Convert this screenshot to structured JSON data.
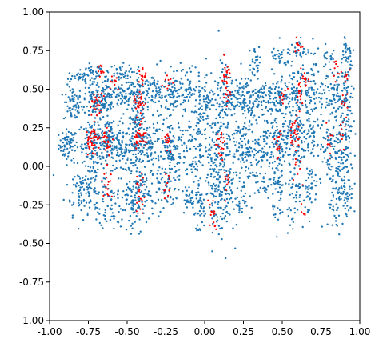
{
  "chart_data": {
    "type": "scatter",
    "title": "",
    "xlabel": "",
    "ylabel": "",
    "xlim": [
      -1.0,
      1.0
    ],
    "ylim": [
      -1.0,
      1.0
    ],
    "grid": false,
    "legend": "none",
    "x_ticks": [
      "-1.00",
      "-0.75",
      "-0.50",
      "-0.25",
      "0.00",
      "0.25",
      "0.50",
      "0.75",
      "1.00"
    ],
    "y_ticks": [
      "1.00",
      "0.75",
      "0.50",
      "0.25",
      "0.00",
      "-0.25",
      "-0.50",
      "-0.75",
      "-1.00"
    ],
    "series": [
      {
        "color": "#1f77b4",
        "clusters": [
          {
            "x": -0.88,
            "y": 0.14,
            "sx": 0.03,
            "sy": 0.05,
            "n": 70
          },
          {
            "x": -0.85,
            "y": 0.4,
            "sx": 0.03,
            "sy": 0.06,
            "n": 60
          },
          {
            "x": -0.8,
            "y": -0.15,
            "sx": 0.05,
            "sy": 0.08,
            "n": 60
          },
          {
            "x": -0.8,
            "y": 0.58,
            "sx": 0.04,
            "sy": 0.02,
            "n": 30
          },
          {
            "x": -0.72,
            "y": 0.15,
            "sx": 0.05,
            "sy": 0.07,
            "n": 110
          },
          {
            "x": -0.7,
            "y": 0.42,
            "sx": 0.05,
            "sy": 0.06,
            "n": 90
          },
          {
            "x": -0.7,
            "y": -0.1,
            "sx": 0.05,
            "sy": 0.12,
            "n": 80
          },
          {
            "x": -0.7,
            "y": 0.6,
            "sx": 0.05,
            "sy": 0.03,
            "n": 40
          },
          {
            "x": -0.62,
            "y": 0.15,
            "sx": 0.04,
            "sy": 0.08,
            "n": 90
          },
          {
            "x": -0.62,
            "y": 0.45,
            "sx": 0.04,
            "sy": 0.06,
            "n": 70
          },
          {
            "x": -0.6,
            "y": -0.25,
            "sx": 0.04,
            "sy": 0.08,
            "n": 50
          },
          {
            "x": -0.55,
            "y": 0.6,
            "sx": 0.04,
            "sy": 0.03,
            "n": 40
          },
          {
            "x": -0.52,
            "y": 0.12,
            "sx": 0.04,
            "sy": 0.09,
            "n": 90
          },
          {
            "x": -0.5,
            "y": 0.45,
            "sx": 0.04,
            "sy": 0.05,
            "n": 60
          },
          {
            "x": -0.48,
            "y": -0.2,
            "sx": 0.04,
            "sy": 0.1,
            "n": 60
          },
          {
            "x": -0.42,
            "y": 0.15,
            "sx": 0.03,
            "sy": 0.1,
            "n": 90
          },
          {
            "x": -0.42,
            "y": 0.45,
            "sx": 0.03,
            "sy": 0.08,
            "n": 70
          },
          {
            "x": -0.42,
            "y": -0.2,
            "sx": 0.03,
            "sy": 0.1,
            "n": 60
          },
          {
            "x": -0.35,
            "y": 0.15,
            "sx": 0.04,
            "sy": 0.08,
            "n": 70
          },
          {
            "x": -0.32,
            "y": 0.48,
            "sx": 0.04,
            "sy": 0.07,
            "n": 60
          },
          {
            "x": -0.3,
            "y": -0.1,
            "sx": 0.04,
            "sy": 0.1,
            "n": 50
          },
          {
            "x": -0.22,
            "y": 0.15,
            "sx": 0.03,
            "sy": 0.07,
            "n": 70
          },
          {
            "x": -0.22,
            "y": 0.45,
            "sx": 0.03,
            "sy": 0.08,
            "n": 60
          },
          {
            "x": -0.22,
            "y": -0.12,
            "sx": 0.03,
            "sy": 0.1,
            "n": 50
          },
          {
            "x": -0.12,
            "y": 0.5,
            "sx": 0.04,
            "sy": 0.08,
            "n": 60
          },
          {
            "x": -0.1,
            "y": 0.1,
            "sx": 0.04,
            "sy": 0.12,
            "n": 70
          },
          {
            "x": -0.1,
            "y": -0.2,
            "sx": 0.03,
            "sy": 0.06,
            "n": 30
          },
          {
            "x": -0.03,
            "y": 0.25,
            "sx": 0.015,
            "sy": 0.2,
            "n": 60
          },
          {
            "x": -0.03,
            "y": -0.25,
            "sx": 0.015,
            "sy": 0.1,
            "n": 40
          },
          {
            "x": 0.02,
            "y": 0.45,
            "sx": 0.02,
            "sy": 0.1,
            "n": 50
          },
          {
            "x": 0.05,
            "y": 0.05,
            "sx": 0.03,
            "sy": 0.15,
            "n": 70
          },
          {
            "x": 0.08,
            "y": -0.25,
            "sx": 0.03,
            "sy": 0.1,
            "n": 60
          },
          {
            "x": 0.1,
            "y": 0.2,
            "sx": 0.025,
            "sy": 0.2,
            "n": 70
          },
          {
            "x": 0.14,
            "y": 0.45,
            "sx": 0.025,
            "sy": 0.12,
            "n": 60
          },
          {
            "x": 0.14,
            "y": -0.15,
            "sx": 0.025,
            "sy": 0.15,
            "n": 50
          },
          {
            "x": 0.22,
            "y": 0.15,
            "sx": 0.04,
            "sy": 0.09,
            "n": 70
          },
          {
            "x": 0.22,
            "y": 0.45,
            "sx": 0.04,
            "sy": 0.06,
            "n": 60
          },
          {
            "x": 0.22,
            "y": -0.2,
            "sx": 0.03,
            "sy": 0.08,
            "n": 40
          },
          {
            "x": 0.3,
            "y": 0.45,
            "sx": 0.03,
            "sy": 0.08,
            "n": 60
          },
          {
            "x": 0.3,
            "y": 0.1,
            "sx": 0.03,
            "sy": 0.12,
            "n": 60
          },
          {
            "x": 0.33,
            "y": 0.68,
            "sx": 0.02,
            "sy": 0.05,
            "n": 25
          },
          {
            "x": 0.38,
            "y": 0.15,
            "sx": 0.03,
            "sy": 0.1,
            "n": 60
          },
          {
            "x": 0.38,
            "y": 0.45,
            "sx": 0.03,
            "sy": 0.06,
            "n": 50
          },
          {
            "x": 0.38,
            "y": -0.1,
            "sx": 0.03,
            "sy": 0.08,
            "n": 30
          },
          {
            "x": 0.48,
            "y": 0.15,
            "sx": 0.03,
            "sy": 0.1,
            "n": 70
          },
          {
            "x": 0.48,
            "y": 0.45,
            "sx": 0.03,
            "sy": 0.08,
            "n": 60
          },
          {
            "x": 0.48,
            "y": -0.15,
            "sx": 0.02,
            "sy": 0.12,
            "n": 50
          },
          {
            "x": 0.5,
            "y": 0.7,
            "sx": 0.04,
            "sy": 0.04,
            "n": 30
          },
          {
            "x": 0.58,
            "y": 0.2,
            "sx": 0.04,
            "sy": 0.09,
            "n": 80
          },
          {
            "x": 0.58,
            "y": 0.5,
            "sx": 0.04,
            "sy": 0.08,
            "n": 70
          },
          {
            "x": 0.58,
            "y": -0.15,
            "sx": 0.03,
            "sy": 0.12,
            "n": 60
          },
          {
            "x": 0.62,
            "y": 0.75,
            "sx": 0.04,
            "sy": 0.04,
            "n": 30
          },
          {
            "x": 0.68,
            "y": 0.2,
            "sx": 0.03,
            "sy": 0.1,
            "n": 60
          },
          {
            "x": 0.68,
            "y": 0.5,
            "sx": 0.03,
            "sy": 0.08,
            "n": 50
          },
          {
            "x": 0.68,
            "y": -0.15,
            "sx": 0.03,
            "sy": 0.08,
            "n": 40
          },
          {
            "x": 0.78,
            "y": 0.15,
            "sx": 0.03,
            "sy": 0.08,
            "n": 40
          },
          {
            "x": 0.78,
            "y": 0.45,
            "sx": 0.03,
            "sy": 0.06,
            "n": 30
          },
          {
            "x": 0.8,
            "y": 0.7,
            "sx": 0.03,
            "sy": 0.04,
            "n": 25
          },
          {
            "x": 0.85,
            "y": 0.1,
            "sx": 0.03,
            "sy": 0.15,
            "n": 70
          },
          {
            "x": 0.85,
            "y": 0.45,
            "sx": 0.03,
            "sy": 0.1,
            "n": 60
          },
          {
            "x": 0.85,
            "y": -0.2,
            "sx": 0.03,
            "sy": 0.1,
            "n": 60
          },
          {
            "x": 0.92,
            "y": 0.15,
            "sx": 0.02,
            "sy": 0.12,
            "n": 50
          },
          {
            "x": 0.92,
            "y": 0.5,
            "sx": 0.02,
            "sy": 0.12,
            "n": 50
          },
          {
            "x": 0.92,
            "y": 0.75,
            "sx": 0.02,
            "sy": 0.05,
            "n": 25
          },
          {
            "x": 0.92,
            "y": -0.15,
            "sx": 0.02,
            "sy": 0.1,
            "n": 40
          }
        ]
      },
      {
        "color": "#ff0000",
        "clusters": [
          {
            "x": -0.72,
            "y": 0.17,
            "sx": 0.025,
            "sy": 0.04,
            "n": 40
          },
          {
            "x": -0.7,
            "y": 0.4,
            "sx": 0.02,
            "sy": 0.04,
            "n": 25
          },
          {
            "x": -0.66,
            "y": 0.62,
            "sx": 0.02,
            "sy": 0.02,
            "n": 10
          },
          {
            "x": -0.63,
            "y": 0.17,
            "sx": 0.02,
            "sy": 0.04,
            "n": 25
          },
          {
            "x": -0.63,
            "y": -0.1,
            "sx": 0.015,
            "sy": 0.06,
            "n": 15
          },
          {
            "x": -0.58,
            "y": 0.55,
            "sx": 0.02,
            "sy": 0.03,
            "n": 10
          },
          {
            "x": -0.42,
            "y": 0.2,
            "sx": 0.02,
            "sy": 0.05,
            "n": 35
          },
          {
            "x": -0.42,
            "y": 0.42,
            "sx": 0.02,
            "sy": 0.05,
            "n": 30
          },
          {
            "x": -0.4,
            "y": 0.58,
            "sx": 0.015,
            "sy": 0.03,
            "n": 15
          },
          {
            "x": -0.42,
            "y": -0.2,
            "sx": 0.015,
            "sy": 0.08,
            "n": 20
          },
          {
            "x": -0.24,
            "y": 0.17,
            "sx": 0.015,
            "sy": 0.04,
            "n": 15
          },
          {
            "x": -0.24,
            "y": 0.55,
            "sx": 0.015,
            "sy": 0.03,
            "n": 10
          },
          {
            "x": -0.24,
            "y": -0.12,
            "sx": 0.015,
            "sy": 0.05,
            "n": 10
          },
          {
            "x": 0.05,
            "y": -0.3,
            "sx": 0.015,
            "sy": 0.05,
            "n": 15
          },
          {
            "x": 0.1,
            "y": 0.15,
            "sx": 0.015,
            "sy": 0.05,
            "n": 20
          },
          {
            "x": 0.14,
            "y": 0.6,
            "sx": 0.012,
            "sy": 0.04,
            "n": 20
          },
          {
            "x": 0.14,
            "y": 0.45,
            "sx": 0.012,
            "sy": 0.04,
            "n": 15
          },
          {
            "x": 0.14,
            "y": -0.1,
            "sx": 0.012,
            "sy": 0.06,
            "n": 10
          },
          {
            "x": 0.48,
            "y": 0.15,
            "sx": 0.015,
            "sy": 0.05,
            "n": 15
          },
          {
            "x": 0.5,
            "y": 0.45,
            "sx": 0.015,
            "sy": 0.04,
            "n": 10
          },
          {
            "x": 0.58,
            "y": 0.22,
            "sx": 0.02,
            "sy": 0.05,
            "n": 30
          },
          {
            "x": 0.6,
            "y": 0.45,
            "sx": 0.015,
            "sy": 0.04,
            "n": 15
          },
          {
            "x": 0.65,
            "y": 0.55,
            "sx": 0.02,
            "sy": 0.03,
            "n": 15
          },
          {
            "x": 0.6,
            "y": 0.78,
            "sx": 0.015,
            "sy": 0.02,
            "n": 10
          },
          {
            "x": 0.6,
            "y": -0.05,
            "sx": 0.015,
            "sy": 0.06,
            "n": 10
          },
          {
            "x": 0.62,
            "y": -0.3,
            "sx": 0.015,
            "sy": 0.03,
            "n": 5
          },
          {
            "x": 0.8,
            "y": 0.15,
            "sx": 0.015,
            "sy": 0.05,
            "n": 10
          },
          {
            "x": 0.85,
            "y": 0.62,
            "sx": 0.015,
            "sy": 0.03,
            "n": 10
          },
          {
            "x": 0.88,
            "y": 0.2,
            "sx": 0.012,
            "sy": 0.05,
            "n": 10
          },
          {
            "x": 0.9,
            "y": 0.42,
            "sx": 0.012,
            "sy": 0.04,
            "n": 10
          },
          {
            "x": 0.92,
            "y": 0.58,
            "sx": 0.012,
            "sy": 0.03,
            "n": 8
          }
        ]
      }
    ]
  }
}
